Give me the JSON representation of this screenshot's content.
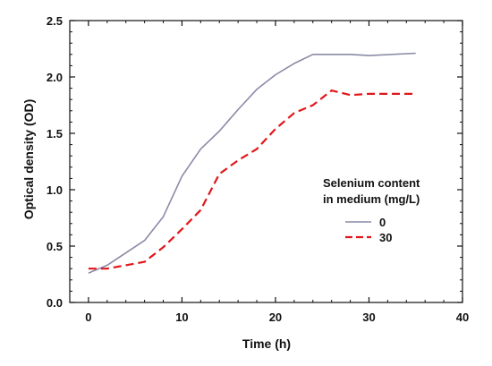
{
  "chart_data": {
    "type": "line",
    "xlabel": "Time (h)",
    "ylabel": "Optical density (OD)",
    "xlim": [
      -2,
      40
    ],
    "ylim": [
      0,
      2.5
    ],
    "xticks": [
      "0",
      "10",
      "20",
      "30",
      "40"
    ],
    "yticks": [
      "0.0",
      "0.5",
      "1.0",
      "1.5",
      "2.0",
      "2.5"
    ],
    "grid": false,
    "legend": {
      "title_line1": "Selenium content",
      "title_line2": "in medium (mg/L)",
      "placement": "center-right"
    },
    "series": [
      {
        "name": "0",
        "color": "#8a8aa8",
        "style": "solid",
        "x": [
          0,
          2,
          4,
          6,
          8,
          10,
          12,
          14,
          16,
          18,
          20,
          22,
          24,
          26,
          28,
          30,
          35
        ],
        "y": [
          0.26,
          0.33,
          0.44,
          0.55,
          0.76,
          1.12,
          1.36,
          1.52,
          1.71,
          1.89,
          2.02,
          2.12,
          2.2,
          2.2,
          2.2,
          2.19,
          2.21
        ]
      },
      {
        "name": "30",
        "color": "#e0161a",
        "style": "dashed",
        "x": [
          0,
          2,
          4,
          6,
          8,
          10,
          12,
          14,
          16,
          18,
          20,
          22,
          24,
          26,
          28,
          30,
          35
        ],
        "y": [
          0.3,
          0.3,
          0.33,
          0.36,
          0.49,
          0.65,
          0.82,
          1.14,
          1.26,
          1.36,
          1.54,
          1.68,
          1.75,
          1.88,
          1.84,
          1.85,
          1.85
        ]
      }
    ]
  }
}
